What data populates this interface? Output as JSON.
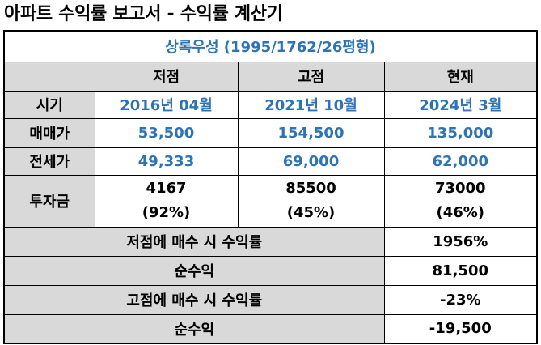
{
  "title": "아파트 수익률 보고서 - 수익률 계산기",
  "caption": "상록우성 (1995/1762/26평형)",
  "header": {
    "empty": "",
    "columns": [
      "저점",
      "고점",
      "현재"
    ]
  },
  "rows": {
    "time": {
      "label": "시기",
      "values": [
        "2016년 04월",
        "2021년 10월",
        "2024년 3월"
      ]
    },
    "sale_price": {
      "label": "매매가",
      "values": [
        "53,500",
        "154,500",
        "135,000"
      ]
    },
    "jeonse_price": {
      "label": "전세가",
      "values": [
        "49,333",
        "69,000",
        "62,000"
      ]
    },
    "investment": {
      "label": "투자금",
      "amounts": [
        "4167",
        "85500",
        "73000"
      ],
      "ratios": [
        "(92%)",
        "(45%)",
        "(46%)"
      ]
    }
  },
  "summary": [
    {
      "label": "저점에 매수 시 수익률",
      "value": "1956%"
    },
    {
      "label": "순수익",
      "value": "81,500"
    },
    {
      "label": "고점에 매수 시 수익률",
      "value": "-23%"
    },
    {
      "label": "순수익",
      "value": "-19,500"
    }
  ],
  "colors": {
    "accent_blue": "#2e74b5",
    "header_grey": "#d9d9d9"
  }
}
